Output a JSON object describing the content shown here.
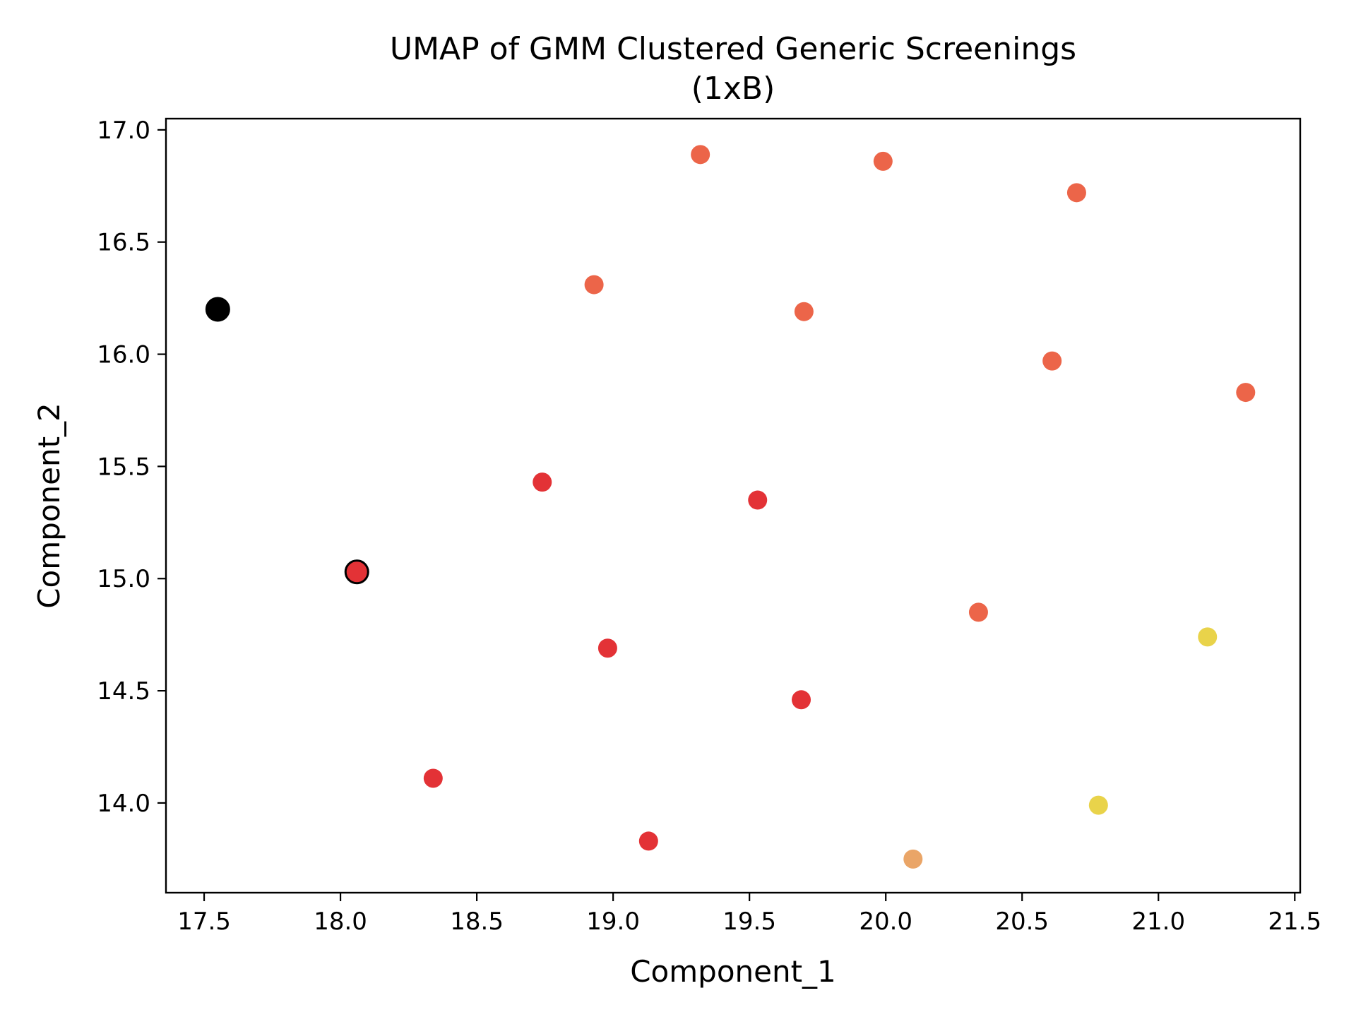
{
  "chart_data": {
    "type": "scatter",
    "title": "UMAP of GMM Clustered Generic Screenings",
    "subtitle": "(1xB)",
    "xlabel": "Component_1",
    "ylabel": "Component_2",
    "xlim": [
      17.36,
      21.52
    ],
    "ylim": [
      13.6,
      17.05
    ],
    "xticks": [
      "17.5",
      "18.0",
      "18.5",
      "19.0",
      "19.5",
      "20.0",
      "20.5",
      "21.0",
      "21.5"
    ],
    "yticks": [
      "14.0",
      "14.5",
      "15.0",
      "15.5",
      "16.0",
      "16.5",
      "17.0"
    ],
    "grid": false,
    "legend": "none",
    "colors": {
      "red": "#e33236",
      "coral": "#ec6549",
      "orange": "#eaa567",
      "yellow": "#e9d34a",
      "black": "#000000"
    },
    "points": [
      {
        "x": 19.32,
        "y": 16.89,
        "color": "coral"
      },
      {
        "x": 19.99,
        "y": 16.86,
        "color": "coral"
      },
      {
        "x": 20.7,
        "y": 16.72,
        "color": "coral"
      },
      {
        "x": 18.93,
        "y": 16.31,
        "color": "coral"
      },
      {
        "x": 19.7,
        "y": 16.19,
        "color": "coral"
      },
      {
        "x": 20.61,
        "y": 15.97,
        "color": "coral"
      },
      {
        "x": 21.32,
        "y": 15.83,
        "color": "coral"
      },
      {
        "x": 20.34,
        "y": 14.85,
        "color": "coral"
      },
      {
        "x": 18.74,
        "y": 15.43,
        "color": "red"
      },
      {
        "x": 19.53,
        "y": 15.35,
        "color": "red"
      },
      {
        "x": 18.06,
        "y": 15.03,
        "color": "red",
        "highlight": true
      },
      {
        "x": 18.98,
        "y": 14.69,
        "color": "red"
      },
      {
        "x": 19.69,
        "y": 14.46,
        "color": "red"
      },
      {
        "x": 18.34,
        "y": 14.11,
        "color": "red"
      },
      {
        "x": 19.13,
        "y": 13.83,
        "color": "red"
      },
      {
        "x": 20.1,
        "y": 13.75,
        "color": "orange"
      },
      {
        "x": 21.18,
        "y": 14.74,
        "color": "yellow"
      },
      {
        "x": 20.78,
        "y": 13.99,
        "color": "yellow"
      },
      {
        "x": 17.55,
        "y": 16.2,
        "color": "black",
        "highlight": true
      }
    ]
  }
}
